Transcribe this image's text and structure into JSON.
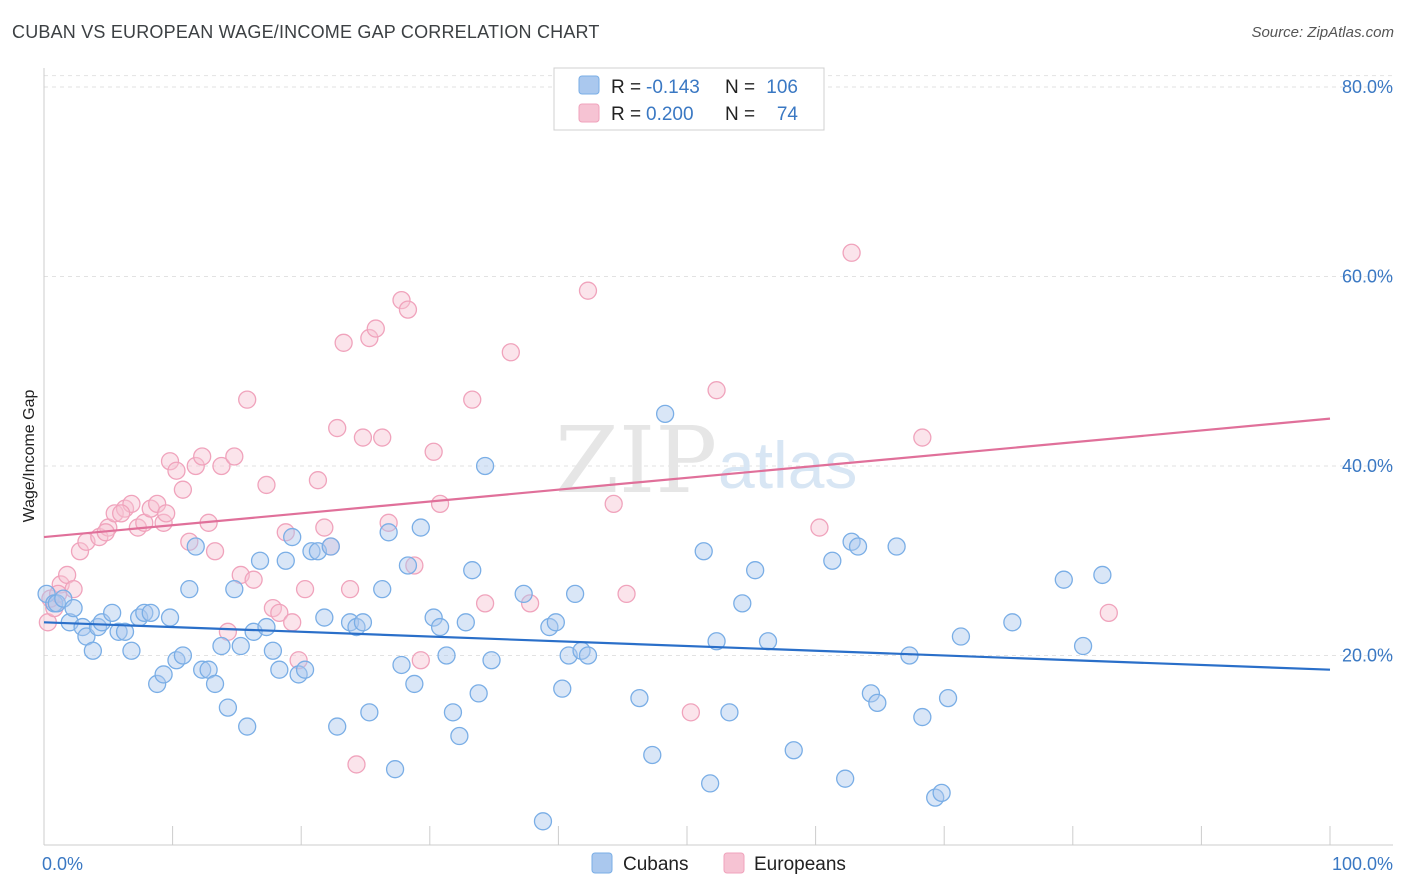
{
  "title": "CUBAN VS EUROPEAN WAGE/INCOME GAP CORRELATION CHART",
  "source": "Source: ZipAtlas.com",
  "watermark": {
    "zip": "ZIP",
    "atlas": "atlas"
  },
  "colors": {
    "cubans": "#7aaee6",
    "cubans_fill": "#aac8ee",
    "cubans_line": "#2a6fc9",
    "europeans": "#f0a3bc",
    "europeans_fill": "#f6c3d3",
    "europeans_line": "#e0709a",
    "tick_text": "#3a78c3",
    "grid": "#e2e2e2"
  },
  "legend": {
    "rows": [
      {
        "r_label": "R =",
        "r_value": "-0.143",
        "n_label": "N =",
        "n_value": "106"
      },
      {
        "r_label": "R =",
        "r_value": "0.200",
        "n_label": "N =",
        "n_value": "74"
      }
    ]
  },
  "chart_data": {
    "type": "scatter",
    "ylabel": "Wage/Income Gap",
    "xlim": [
      0,
      100
    ],
    "ylim": [
      0,
      82
    ],
    "x_tick_labels": [
      "0.0%",
      "100.0%"
    ],
    "y_ticks": [
      20,
      40,
      60,
      80
    ],
    "y_tick_labels": [
      "20.0%",
      "40.0%",
      "60.0%",
      "80.0%"
    ],
    "grid": "horizontal dashed",
    "legend_position": "top-center",
    "series": [
      {
        "name": "Cubans",
        "trend": {
          "x": [
            0,
            100
          ],
          "y": [
            23.5,
            18.5
          ]
        },
        "points": [
          [
            0.2,
            26.5
          ],
          [
            0.8,
            25.5
          ],
          [
            1,
            25.5
          ],
          [
            1.5,
            26
          ],
          [
            2,
            23.5
          ],
          [
            2.3,
            25
          ],
          [
            3,
            23
          ],
          [
            3.3,
            22
          ],
          [
            3.8,
            20.5
          ],
          [
            4.2,
            23
          ],
          [
            4.5,
            23.5
          ],
          [
            5.3,
            24.5
          ],
          [
            5.8,
            22.5
          ],
          [
            6.3,
            22.5
          ],
          [
            6.8,
            20.5
          ],
          [
            7.4,
            24
          ],
          [
            7.8,
            24.5
          ],
          [
            8.3,
            24.5
          ],
          [
            8.8,
            17
          ],
          [
            9.3,
            18
          ],
          [
            9.8,
            24
          ],
          [
            10.3,
            19.5
          ],
          [
            10.8,
            20
          ],
          [
            11.3,
            27
          ],
          [
            11.8,
            31.5
          ],
          [
            12.3,
            18.5
          ],
          [
            12.8,
            18.5
          ],
          [
            13.3,
            17
          ],
          [
            13.8,
            21
          ],
          [
            14.3,
            14.5
          ],
          [
            14.8,
            27
          ],
          [
            15.3,
            21
          ],
          [
            15.8,
            12.5
          ],
          [
            16.3,
            22.5
          ],
          [
            16.8,
            30
          ],
          [
            17.3,
            23
          ],
          [
            17.8,
            20.5
          ],
          [
            18.3,
            18.5
          ],
          [
            18.8,
            30
          ],
          [
            19.3,
            32.5
          ],
          [
            19.8,
            18
          ],
          [
            20.3,
            18.5
          ],
          [
            20.8,
            31
          ],
          [
            21.3,
            31
          ],
          [
            21.8,
            24
          ],
          [
            22.3,
            31.5
          ],
          [
            22.8,
            12.5
          ],
          [
            23.8,
            23.5
          ],
          [
            24.3,
            23
          ],
          [
            24.8,
            23.5
          ],
          [
            25.3,
            14
          ],
          [
            26.3,
            27
          ],
          [
            26.8,
            33
          ],
          [
            27.3,
            8
          ],
          [
            27.8,
            19
          ],
          [
            28.3,
            29.5
          ],
          [
            28.8,
            17
          ],
          [
            29.3,
            33.5
          ],
          [
            30.3,
            24
          ],
          [
            30.8,
            23
          ],
          [
            31.3,
            20
          ],
          [
            31.8,
            14
          ],
          [
            32.3,
            11.5
          ],
          [
            32.8,
            23.5
          ],
          [
            33.3,
            29
          ],
          [
            33.8,
            16
          ],
          [
            34.3,
            40
          ],
          [
            34.8,
            19.5
          ],
          [
            37.3,
            26.5
          ],
          [
            38.8,
            2.5
          ],
          [
            39.3,
            23
          ],
          [
            39.8,
            23.5
          ],
          [
            40.3,
            16.5
          ],
          [
            40.8,
            20
          ],
          [
            41.3,
            26.5
          ],
          [
            41.8,
            20.5
          ],
          [
            42.3,
            20
          ],
          [
            46.3,
            15.5
          ],
          [
            47.3,
            9.5
          ],
          [
            48.3,
            45.5
          ],
          [
            51.3,
            31
          ],
          [
            51.8,
            6.5
          ],
          [
            52.3,
            21.5
          ],
          [
            53.3,
            14
          ],
          [
            54.3,
            25.5
          ],
          [
            55.3,
            29
          ],
          [
            56.3,
            21.5
          ],
          [
            58.3,
            10
          ],
          [
            61.3,
            30
          ],
          [
            62.3,
            7
          ],
          [
            62.8,
            32
          ],
          [
            63.3,
            31.5
          ],
          [
            64.3,
            16
          ],
          [
            64.8,
            15
          ],
          [
            66.3,
            31.5
          ],
          [
            67.3,
            20
          ],
          [
            68.3,
            13.5
          ],
          [
            69.3,
            5
          ],
          [
            69.8,
            5.5
          ],
          [
            70.3,
            15.5
          ],
          [
            71.3,
            22
          ],
          [
            75.3,
            23.5
          ],
          [
            79.3,
            28
          ],
          [
            80.8,
            21
          ],
          [
            82.3,
            28.5
          ]
        ]
      },
      {
        "name": "Europeans",
        "trend": {
          "x": [
            0,
            100
          ],
          "y": [
            32.5,
            45
          ]
        },
        "points": [
          [
            0.3,
            23.5
          ],
          [
            0.8,
            25
          ],
          [
            1.3,
            27.5
          ],
          [
            1.8,
            28.5
          ],
          [
            2.3,
            27
          ],
          [
            2.8,
            31
          ],
          [
            3.3,
            32
          ],
          [
            4.3,
            32.5
          ],
          [
            5,
            33.5
          ],
          [
            5.5,
            35
          ],
          [
            6.3,
            35.5
          ],
          [
            6.8,
            36
          ],
          [
            7.3,
            33.5
          ],
          [
            7.8,
            34
          ],
          [
            8.3,
            35.5
          ],
          [
            8.8,
            36
          ],
          [
            9.3,
            34
          ],
          [
            9.8,
            40.5
          ],
          [
            10.3,
            39.5
          ],
          [
            10.8,
            37.5
          ],
          [
            11.3,
            32
          ],
          [
            11.8,
            40
          ],
          [
            12.3,
            41
          ],
          [
            12.8,
            34
          ],
          [
            13.3,
            31
          ],
          [
            13.8,
            40
          ],
          [
            14.3,
            22.5
          ],
          [
            14.8,
            41
          ],
          [
            15.3,
            28.5
          ],
          [
            15.8,
            47
          ],
          [
            16.3,
            28
          ],
          [
            17.3,
            38
          ],
          [
            17.8,
            25
          ],
          [
            18.3,
            24.5
          ],
          [
            18.8,
            33
          ],
          [
            19.3,
            23.5
          ],
          [
            19.8,
            19.5
          ],
          [
            20.3,
            27
          ],
          [
            21.3,
            38.5
          ],
          [
            21.8,
            33.5
          ],
          [
            22.3,
            31.5
          ],
          [
            22.8,
            44
          ],
          [
            23.3,
            53
          ],
          [
            23.8,
            27
          ],
          [
            24.3,
            8.5
          ],
          [
            24.8,
            43
          ],
          [
            25.3,
            53.5
          ],
          [
            25.8,
            54.5
          ],
          [
            26.3,
            43
          ],
          [
            26.8,
            34
          ],
          [
            27.8,
            57.5
          ],
          [
            28.3,
            56.5
          ],
          [
            28.8,
            29.5
          ],
          [
            29.3,
            19.5
          ],
          [
            30.3,
            41.5
          ],
          [
            30.8,
            36
          ],
          [
            33.3,
            47
          ],
          [
            34.3,
            25.5
          ],
          [
            36.3,
            52
          ],
          [
            37.8,
            25.5
          ],
          [
            42.3,
            58.5
          ],
          [
            44.3,
            36
          ],
          [
            45.3,
            26.5
          ],
          [
            50.3,
            14
          ],
          [
            52.3,
            48
          ],
          [
            60.3,
            33.5
          ],
          [
            62.8,
            62.5
          ],
          [
            68.3,
            43
          ],
          [
            82.8,
            24.5
          ],
          [
            0.5,
            26
          ],
          [
            1.1,
            26.5
          ],
          [
            4.8,
            33
          ],
          [
            6,
            35
          ],
          [
            9.5,
            35
          ]
        ]
      }
    ]
  },
  "bottom_legend": [
    {
      "label": "Cubans"
    },
    {
      "label": "Europeans"
    }
  ]
}
